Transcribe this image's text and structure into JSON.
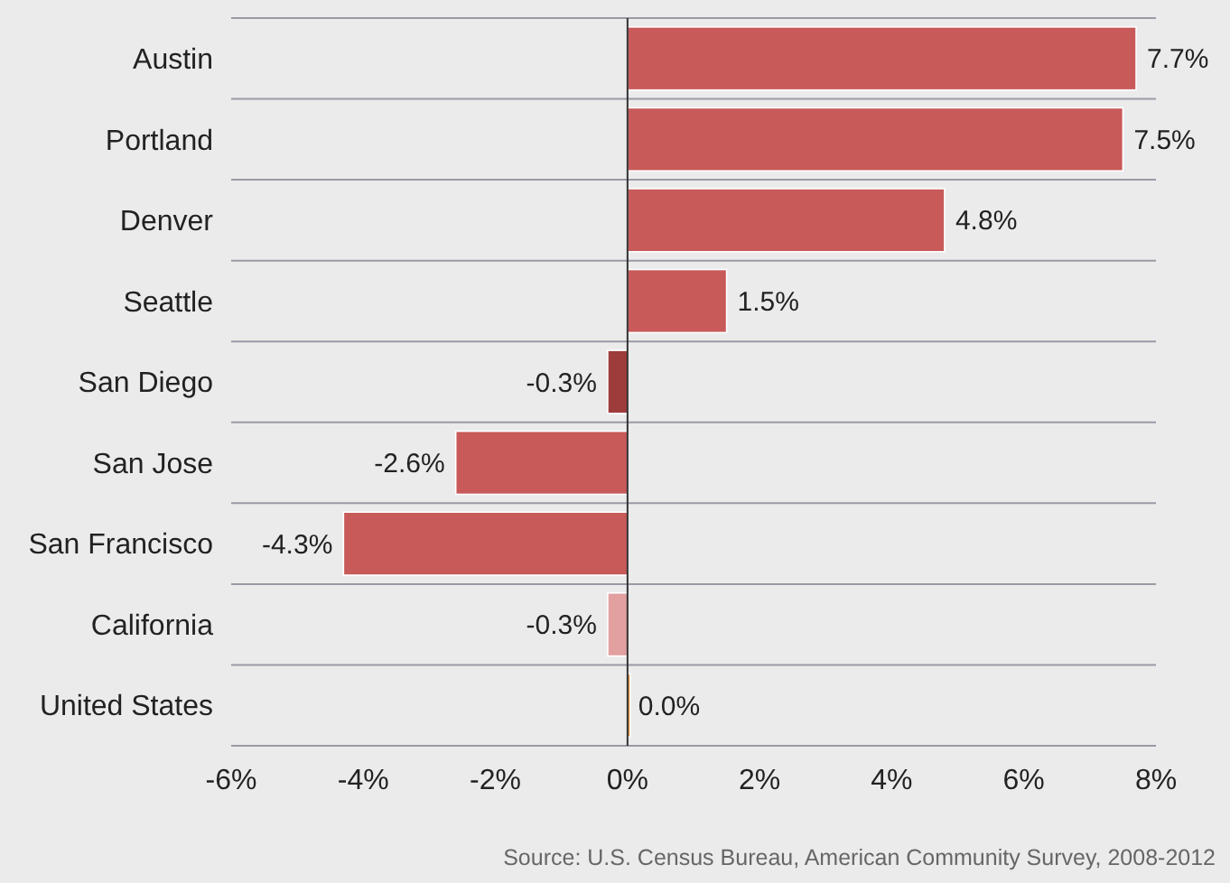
{
  "chart_data": {
    "type": "bar",
    "orientation": "horizontal",
    "categories": [
      "Austin",
      "Portland",
      "Denver",
      "Seattle",
      "San Diego",
      "San Jose",
      "San Francisco",
      "California",
      "United States"
    ],
    "values": [
      7.7,
      7.5,
      4.8,
      1.5,
      -0.3,
      -2.6,
      -4.3,
      -0.3,
      0.0
    ],
    "colors": [
      "#c85a5a",
      "#c85a5a",
      "#c85a5a",
      "#c85a5a",
      "#9e3b3b",
      "#c85a5a",
      "#c85a5a",
      "#e2a0a0",
      "#e08a2a"
    ],
    "value_labels": [
      "7.7%",
      "7.5%",
      "4.8%",
      "1.5%",
      "-0.3%",
      "-2.6%",
      "-4.3%",
      "-0.3%",
      "0.0%"
    ],
    "xlim": [
      -6,
      8
    ],
    "xticks": [
      {
        "value": -6,
        "label": "-6%"
      },
      {
        "value": -4,
        "label": "-4%"
      },
      {
        "value": -2,
        "label": "-2%"
      },
      {
        "value": 0,
        "label": "0%"
      },
      {
        "value": 2,
        "label": "2%"
      },
      {
        "value": 4,
        "label": "4%"
      },
      {
        "value": 6,
        "label": "6%"
      },
      {
        "value": 8,
        "label": "8%"
      }
    ],
    "grid": "y",
    "annotations": [
      "Source: U.S. Census Bureau, American Community Survey, 2008-2012"
    ]
  }
}
